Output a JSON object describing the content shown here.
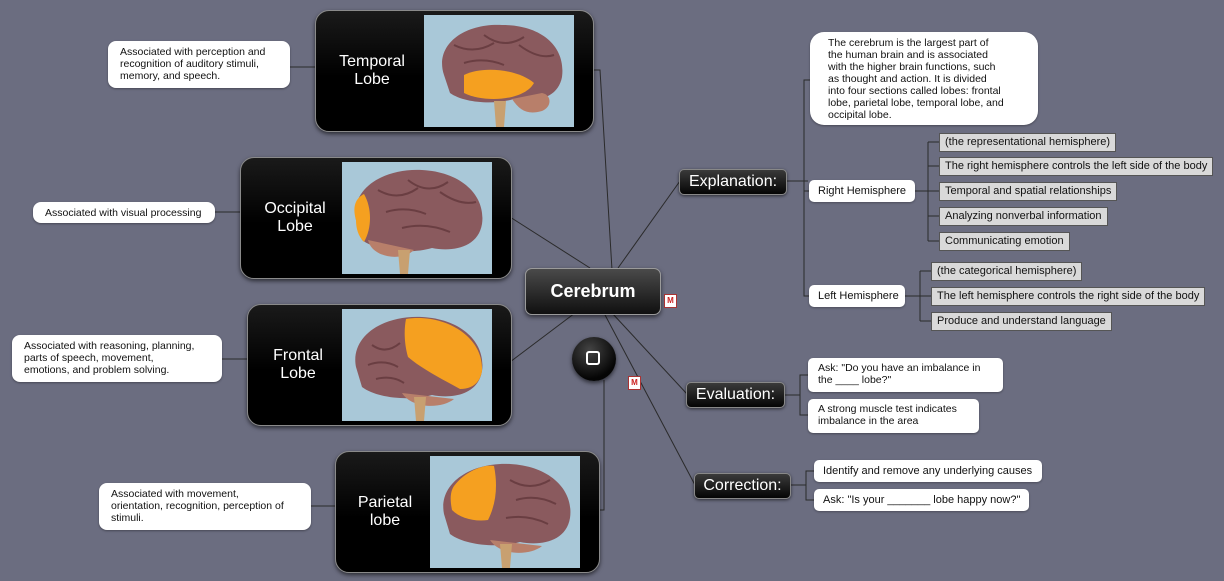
{
  "central": {
    "label": "Cerebrum"
  },
  "lobes": [
    {
      "label": "Temporal\nLobe",
      "note": "Associated with perception and\nrecognition of auditory stimuli,\nmemory, and speech."
    },
    {
      "label": "Occipital\nLobe",
      "note": "Associated with visual processing"
    },
    {
      "label": "Frontal\nLobe",
      "note": "Associated with reasoning, planning,\nparts of speech, movement,\nemotions, and problem solving."
    },
    {
      "label": "Parietal\nlobe",
      "note": "Associated with movement,\norientation, recognition, perception of\nstimuli."
    }
  ],
  "explanation": {
    "label": "Explanation:",
    "note": "The cerebrum is the largest part of\nthe human brain and is associated\nwith the higher brain functions, such\nas thought and action.  It is divided\ninto four sections called lobes: frontal\nlobe, parietal lobe, temporal lobe, and\noccipital lobe.",
    "right": {
      "label": "Right Hemisphere",
      "items": [
        "(the representational hemisphere)",
        "The right hemisphere controls the left side of the body",
        "Temporal and spatial relationships",
        "Analyzing nonverbal information",
        "Communicating emotion"
      ]
    },
    "left": {
      "label": "Left Hemisphere",
      "items": [
        "(the categorical hemisphere)",
        "The left hemisphere controls the right side of the body",
        "Produce and understand language"
      ]
    }
  },
  "evaluation": {
    "label": "Evaluation:",
    "items": [
      "Ask: \"Do you have an imbalance in\nthe ____ lobe?\"",
      "A strong muscle test indicates\nimbalance in the area"
    ]
  },
  "correction": {
    "label": "Correction:",
    "items": [
      "Identify and remove any underlying causes",
      "Ask: \"Is your _______ lobe happy now?\""
    ]
  },
  "icons": [
    "attachment-icon",
    "attachment-icon",
    "square-icon"
  ],
  "colors": {
    "background": "#6b6d80",
    "brain": "#8a5a5e",
    "highlight": "#f5a020",
    "line": "#2a2a2a"
  }
}
